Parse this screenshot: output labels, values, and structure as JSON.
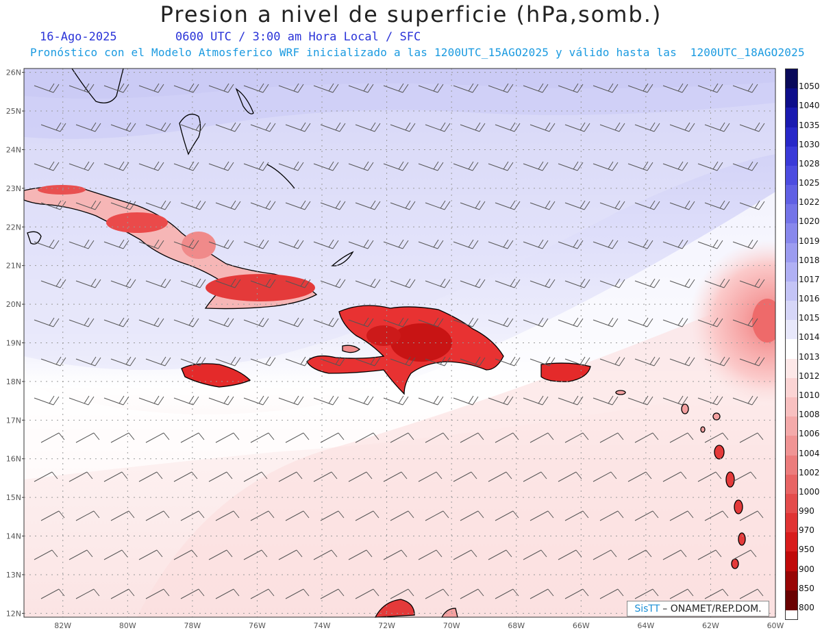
{
  "title": "Presion a nivel de superficie (hPa,somb.)",
  "date": "16-Ago-2025",
  "time_line": "0600 UTC / 3:00 am Hora Local / SFC",
  "subtitle": "Pronóstico con el Modelo Atmosferico WRF inicializado a las 1200UTC_15AGO2025 y válido hasta las  1200UTC_18AGO2025",
  "credit": {
    "brand": "SisTT",
    "text": "– ONAMET/REP.DOM."
  },
  "lat_labels": [
    "26N",
    "25N",
    "24N",
    "23N",
    "22N",
    "21N",
    "20N",
    "19N",
    "18N",
    "17N",
    "16N",
    "15N",
    "14N",
    "13N",
    "12N"
  ],
  "lon_labels": [
    "82W",
    "80W",
    "78W",
    "76W",
    "74W",
    "72W",
    "70W",
    "68W",
    "66W",
    "64W",
    "62W",
    "60W"
  ],
  "legend": {
    "levels": [
      "1050",
      "1040",
      "1035",
      "1030",
      "1028",
      "1025",
      "1022",
      "1020",
      "1019",
      "1018",
      "1017",
      "1016",
      "1015",
      "1014",
      "1013",
      "1012",
      "1010",
      "1008",
      "1006",
      "1004",
      "1002",
      "1000",
      "990",
      "970",
      "950",
      "900",
      "850",
      "800"
    ],
    "colors": [
      "#0a0a5a",
      "#0e0e8a",
      "#1a1ab0",
      "#2828c8",
      "#3a3ad8",
      "#4c4ce0",
      "#6060e4",
      "#7474e8",
      "#8888ec",
      "#9c9cf0",
      "#b0b0f4",
      "#c4c4f6",
      "#d6d6f8",
      "#e8e8fb",
      "#ffffff",
      "#fde8e8",
      "#fbd4d4",
      "#f8c0c0",
      "#f4aaaa",
      "#f09494",
      "#ec7c7c",
      "#e86464",
      "#e44c4c",
      "#e03434",
      "#d81c1c",
      "#c00a0a",
      "#980606",
      "#6a0202"
    ]
  },
  "colors": {
    "land_line": "#000000",
    "grid": "#888888",
    "wind_barb": "#555555"
  }
}
